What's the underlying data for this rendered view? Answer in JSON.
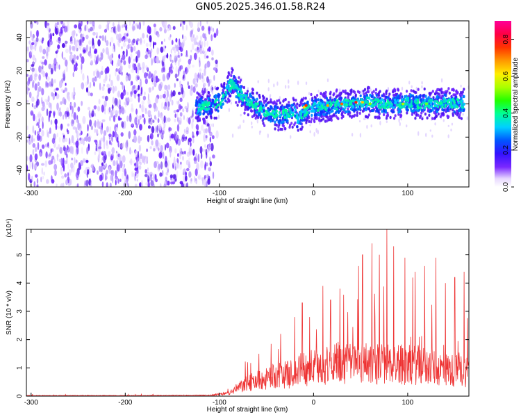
{
  "title": "GN05.2025.346.01.58.R24",
  "chart_data": [
    {
      "type": "heatmap",
      "xlabel": "Height of straight line (km)",
      "ylabel": "Frequency (Hz)",
      "xlim": [
        -305,
        165
      ],
      "ylim": [
        -50,
        50
      ],
      "xticks": [
        -300,
        -200,
        -100,
        0,
        100
      ],
      "xtick_labels": [
        "-300",
        "-200",
        "-100",
        "0",
        "100"
      ],
      "yticks": [
        -40,
        -20,
        0,
        20,
        40
      ],
      "ytick_labels": [
        "-40",
        "-20",
        "0",
        "20",
        "40"
      ],
      "colorbar": {
        "label": "Normalized spectral amplitude",
        "range": [
          0,
          0.9
        ],
        "ticks": [
          0,
          0.2,
          0.4,
          0.6,
          0.8
        ],
        "tick_labels": [
          "0.0",
          "0.2",
          "0.4",
          "0.6",
          "0.8"
        ]
      },
      "noise_region_x": [
        -305,
        -110
      ],
      "signal_ridge": {
        "x": [
          -125,
          -110,
          -100,
          -95,
          -90,
          -86,
          -82,
          -75,
          -65,
          -55,
          -45,
          -35,
          -25,
          -20,
          -17,
          -12,
          -5,
          0,
          10,
          20,
          30,
          40,
          50,
          60,
          70,
          80,
          90,
          100,
          110,
          120,
          130,
          140,
          150,
          160
        ],
        "freq": [
          -2,
          -1,
          1,
          5,
          10,
          13,
          9,
          4,
          0,
          -4,
          -6,
          -7,
          -5,
          -5,
          -9,
          -6,
          -3,
          -2,
          -2,
          -1,
          0,
          0,
          1,
          1,
          0,
          0,
          0,
          1,
          0,
          0,
          0,
          1,
          0,
          0
        ]
      }
    },
    {
      "type": "line",
      "xlabel": "Height of straight line (km)",
      "ylabel": "SNR (10 * v/v)",
      "multiplier": "(x10⁴)",
      "xlim": [
        -305,
        165
      ],
      "ylim": [
        0,
        5.9
      ],
      "xticks": [
        -300,
        -200,
        -100,
        0,
        100
      ],
      "xtick_labels": [
        "-300",
        "-200",
        "-100",
        "0",
        "100"
      ],
      "yticks": [
        0,
        1,
        2,
        3,
        4,
        5
      ],
      "ytick_labels": [
        "0",
        "1",
        "2",
        "3",
        "4",
        "5"
      ],
      "color": "#ee3333",
      "series": [
        {
          "name": "SNR",
          "x": [
            -305,
            -200,
            -110,
            -90,
            -80,
            -70,
            -60,
            -50,
            -40,
            -30,
            -20,
            -10,
            0,
            10,
            20,
            30,
            40,
            50,
            60,
            70,
            80,
            90,
            100,
            110,
            120,
            130,
            140,
            150,
            165
          ],
          "base": [
            0.02,
            0.02,
            0.03,
            0.1,
            0.3,
            0.45,
            0.55,
            0.6,
            0.7,
            0.75,
            0.8,
            1.0,
            1.0,
            1.05,
            1.1,
            1.15,
            1.15,
            1.2,
            1.2,
            1.15,
            1.15,
            1.15,
            1.1,
            1.1,
            1.05,
            1.0,
            0.95,
            0.9,
            0.9
          ],
          "peaks_x": [
            -70,
            -58,
            -45,
            -35,
            -20,
            -12,
            10,
            18,
            28,
            48,
            52,
            62,
            70,
            78,
            85,
            97,
            108,
            118,
            130,
            140,
            150,
            160
          ],
          "peaks_y": [
            1.2,
            1.5,
            1.85,
            2.2,
            2.8,
            3.3,
            3.9,
            3.4,
            3.8,
            4.6,
            5.0,
            5.4,
            5.0,
            5.9,
            5.3,
            4.9,
            4.4,
            4.6,
            4.9,
            4.0,
            4.2,
            4.4
          ]
        }
      ]
    }
  ]
}
